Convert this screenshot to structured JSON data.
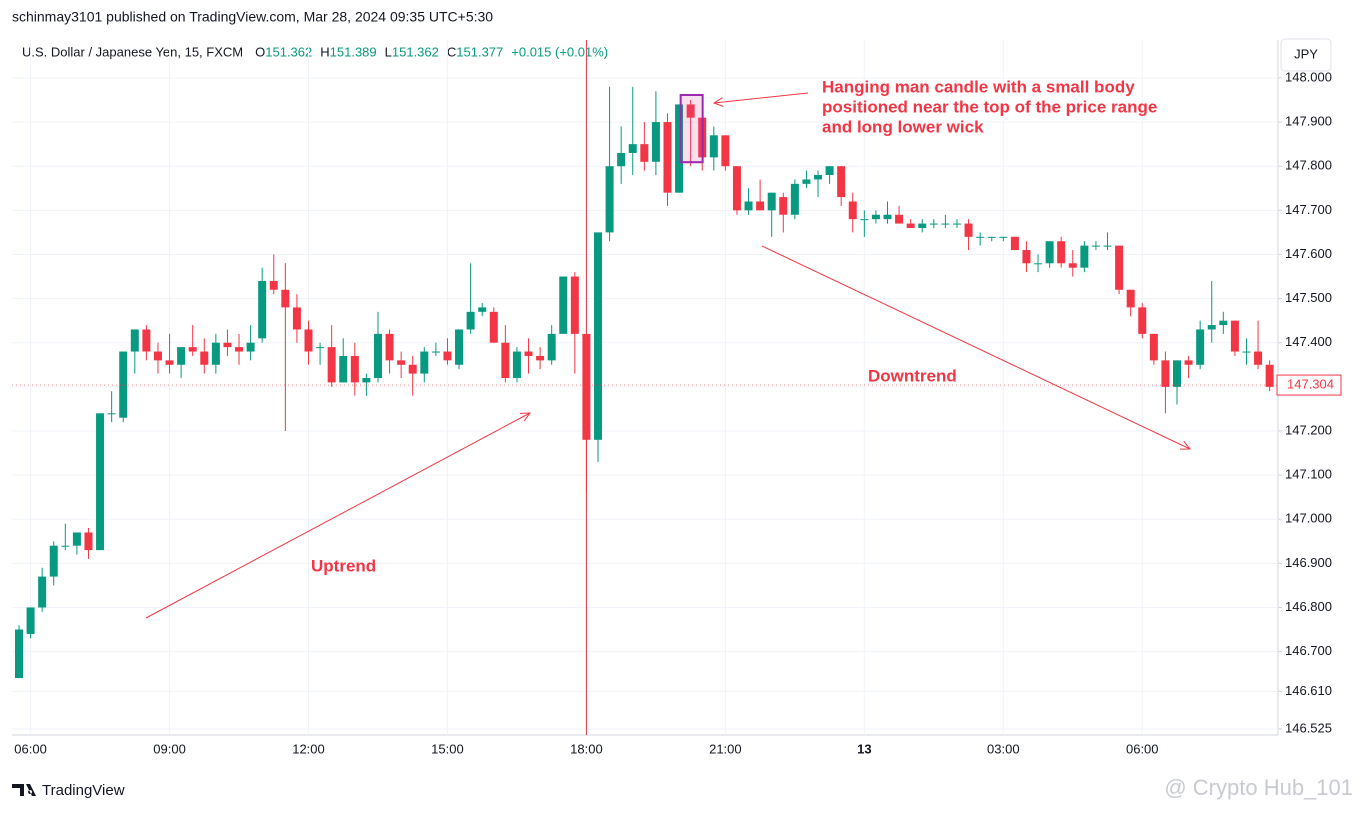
{
  "header": {
    "publisher_line": "schinmay3101 published on TradingView.com, Mar 28, 2024 09:35 UTC+5:30",
    "symbol": "U.S. Dollar / Japanese Yen, 15, FXCM",
    "ohlc_legend": [
      {
        "key": "O",
        "value": "151.362"
      },
      {
        "key": "H",
        "value": "151.389"
      },
      {
        "key": "L",
        "value": "151.362"
      },
      {
        "key": "C",
        "value": "151.377"
      }
    ],
    "change": "+0.015 (+0.01%)",
    "currency": "JPY"
  },
  "footer": {
    "brand": "TradingView",
    "watermark": "@ Crypto Hub_101"
  },
  "chart_data": {
    "type": "candlestick",
    "up_color": "#089981",
    "down_color": "#f23645",
    "grid": true,
    "ylim": [
      146.511,
      148.086
    ],
    "yticks": [
      146.525,
      {
        "value": 146.61,
        "label": "146.610"
      },
      {
        "value": 146.7,
        "label": "146.700"
      },
      {
        "value": 146.8,
        "label": "146.800"
      },
      {
        "value": 146.9,
        "label": "146.900"
      },
      {
        "value": 147.0,
        "label": "147.000"
      },
      {
        "value": 147.1,
        "label": "147.100"
      },
      {
        "value": 147.2,
        "label": "147.200"
      },
      {
        "value": 147.3,
        "label": "147.300"
      },
      {
        "value": 147.4,
        "label": "147.400"
      },
      {
        "value": 147.5,
        "label": "147.500"
      },
      {
        "value": 147.6,
        "label": "147.600"
      },
      {
        "value": 147.7,
        "label": "147.700"
      },
      {
        "value": 147.8,
        "label": "147.800"
      },
      {
        "value": 147.9,
        "label": "147.900"
      },
      {
        "value": 148.0,
        "label": "148.000"
      }
    ],
    "last_price": 147.304,
    "annotations": {
      "hanging_man": [
        "Hanging man candle with a small body",
        "positioned near the top of the price range",
        "and long lower wick"
      ],
      "uptrend": "Uptrend",
      "downtrend": "Downtrend"
    },
    "categories": [
      null,
      "06:00",
      null,
      null,
      null,
      null,
      null,
      null,
      null,
      null,
      null,
      null,
      null,
      "09:00",
      null,
      null,
      null,
      null,
      null,
      null,
      null,
      null,
      null,
      null,
      null,
      "12:00",
      null,
      null,
      null,
      null,
      null,
      null,
      null,
      null,
      null,
      null,
      null,
      "15:00",
      null,
      null,
      null,
      null,
      null,
      null,
      null,
      null,
      null,
      null,
      null,
      "18:00",
      null,
      null,
      null,
      null,
      null,
      null,
      null,
      null,
      null,
      null,
      null,
      "21:00",
      null,
      null,
      null,
      null,
      null,
      null,
      null,
      null,
      null,
      null,
      null,
      "13",
      null,
      null,
      null,
      null,
      null,
      null,
      null,
      null,
      null,
      null,
      null,
      "03:00",
      null,
      null,
      null,
      null,
      null,
      null,
      null,
      null,
      null,
      null,
      null,
      "06:00",
      null,
      null,
      null,
      null,
      null,
      null,
      null,
      null,
      null,
      null,
      null
    ],
    "open": [
      146.64,
      146.74,
      146.8,
      146.87,
      146.94,
      146.94,
      146.97,
      146.93,
      147.24,
      147.23,
      147.38,
      147.43,
      147.38,
      147.36,
      147.35,
      147.39,
      147.38,
      147.35,
      147.4,
      147.39,
      147.38,
      147.41,
      147.54,
      147.52,
      147.48,
      147.43,
      147.39,
      147.39,
      147.31,
      147.37,
      147.31,
      147.32,
      147.42,
      147.36,
      147.35,
      147.33,
      147.38,
      147.38,
      147.35,
      147.43,
      147.47,
      147.47,
      147.4,
      147.32,
      147.38,
      147.37,
      147.36,
      147.42,
      147.55,
      147.42,
      147.18,
      147.65,
      147.8,
      147.83,
      147.85,
      147.81,
      147.9,
      147.74,
      147.94,
      147.91,
      147.82,
      147.87,
      147.8,
      147.7,
      147.72,
      147.7,
      147.73,
      147.69,
      147.76,
      147.77,
      147.78,
      147.8,
      147.72,
      147.68,
      147.68,
      147.68,
      147.69,
      147.67,
      147.66,
      147.67,
      147.67,
      147.67,
      147.67,
      147.64,
      147.64,
      147.64,
      147.64,
      147.61,
      147.58,
      147.58,
      147.63,
      147.58,
      147.57,
      147.62,
      147.62,
      147.62,
      147.52,
      147.48,
      147.42,
      147.36,
      147.3,
      147.36,
      147.35,
      147.43,
      147.44,
      147.45,
      147.38,
      147.38,
      147.35
    ],
    "high": [
      146.76,
      146.8,
      146.89,
      146.95,
      146.99,
      146.97,
      146.98,
      147.24,
      147.29,
      147.38,
      147.42,
      147.44,
      147.4,
      147.42,
      147.39,
      147.44,
      147.41,
      147.42,
      147.43,
      147.42,
      147.44,
      147.57,
      147.6,
      147.58,
      147.51,
      147.45,
      147.4,
      147.44,
      147.41,
      147.4,
      147.33,
      147.47,
      147.43,
      147.38,
      147.37,
      147.39,
      147.4,
      147.41,
      147.43,
      147.58,
      147.49,
      147.48,
      147.44,
      147.39,
      147.41,
      147.39,
      147.44,
      147.55,
      147.56,
      147.42,
      147.65,
      147.98,
      147.89,
      147.98,
      147.9,
      147.97,
      147.92,
      147.94,
      147.95,
      147.91,
      147.89,
      147.87,
      147.8,
      147.75,
      147.77,
      147.74,
      147.74,
      147.77,
      147.79,
      147.79,
      147.8,
      147.8,
      147.74,
      147.7,
      147.7,
      147.72,
      147.71,
      147.68,
      147.68,
      147.68,
      147.69,
      147.68,
      147.68,
      147.65,
      147.64,
      147.64,
      147.64,
      147.63,
      147.6,
      147.63,
      147.64,
      147.61,
      147.63,
      147.63,
      147.65,
      147.62,
      147.52,
      147.49,
      147.42,
      147.38,
      147.36,
      147.37,
      147.45,
      147.54,
      147.47,
      147.45,
      147.41,
      147.45,
      147.36
    ],
    "low": [
      146.64,
      146.73,
      146.79,
      146.85,
      146.93,
      146.92,
      146.91,
      146.93,
      147.22,
      147.22,
      147.33,
      147.36,
      147.33,
      147.33,
      147.32,
      147.37,
      147.33,
      147.33,
      147.37,
      147.35,
      147.36,
      147.4,
      147.51,
      147.2,
      147.4,
      147.35,
      147.35,
      147.3,
      147.31,
      147.28,
      147.28,
      147.31,
      147.33,
      147.32,
      147.28,
      147.31,
      147.37,
      147.35,
      147.34,
      147.42,
      147.46,
      147.4,
      147.31,
      147.31,
      147.33,
      147.34,
      147.35,
      147.42,
      147.33,
      147.06,
      147.13,
      147.63,
      147.76,
      147.78,
      147.79,
      147.78,
      147.71,
      147.74,
      147.8,
      147.79,
      147.79,
      147.79,
      147.69,
      147.69,
      147.7,
      147.64,
      147.65,
      147.68,
      147.75,
      147.73,
      147.76,
      147.71,
      147.65,
      147.64,
      147.67,
      147.67,
      147.67,
      147.66,
      147.65,
      147.66,
      147.66,
      147.66,
      147.61,
      147.62,
      147.63,
      147.63,
      147.61,
      147.56,
      147.56,
      147.57,
      147.57,
      147.55,
      147.56,
      147.61,
      147.61,
      147.51,
      147.46,
      147.41,
      147.35,
      147.24,
      147.26,
      147.32,
      147.34,
      147.4,
      147.42,
      147.37,
      147.35,
      147.34,
      147.29
    ],
    "close": [
      146.75,
      146.8,
      146.87,
      146.94,
      146.94,
      146.97,
      146.93,
      147.24,
      147.24,
      147.38,
      147.43,
      147.38,
      147.36,
      147.35,
      147.39,
      147.38,
      147.35,
      147.4,
      147.39,
      147.38,
      147.4,
      147.54,
      147.52,
      147.48,
      147.43,
      147.38,
      147.39,
      147.31,
      147.37,
      147.31,
      147.32,
      147.42,
      147.36,
      147.35,
      147.33,
      147.38,
      147.38,
      147.36,
      147.43,
      147.47,
      147.48,
      147.4,
      147.32,
      147.38,
      147.37,
      147.36,
      147.42,
      147.55,
      147.42,
      147.18,
      147.65,
      147.8,
      147.83,
      147.85,
      147.81,
      147.9,
      147.74,
      147.94,
      147.91,
      147.82,
      147.87,
      147.8,
      147.7,
      147.72,
      147.7,
      147.74,
      147.69,
      147.76,
      147.77,
      147.78,
      147.8,
      147.73,
      147.68,
      147.68,
      147.69,
      147.69,
      147.67,
      147.66,
      147.67,
      147.67,
      147.67,
      147.67,
      147.64,
      147.64,
      147.64,
      147.64,
      147.61,
      147.58,
      147.58,
      147.63,
      147.58,
      147.57,
      147.62,
      147.62,
      147.62,
      147.52,
      147.48,
      147.42,
      147.36,
      147.3,
      147.36,
      147.35,
      147.43,
      147.44,
      147.45,
      147.38,
      147.38,
      147.35,
      147.3
    ]
  }
}
